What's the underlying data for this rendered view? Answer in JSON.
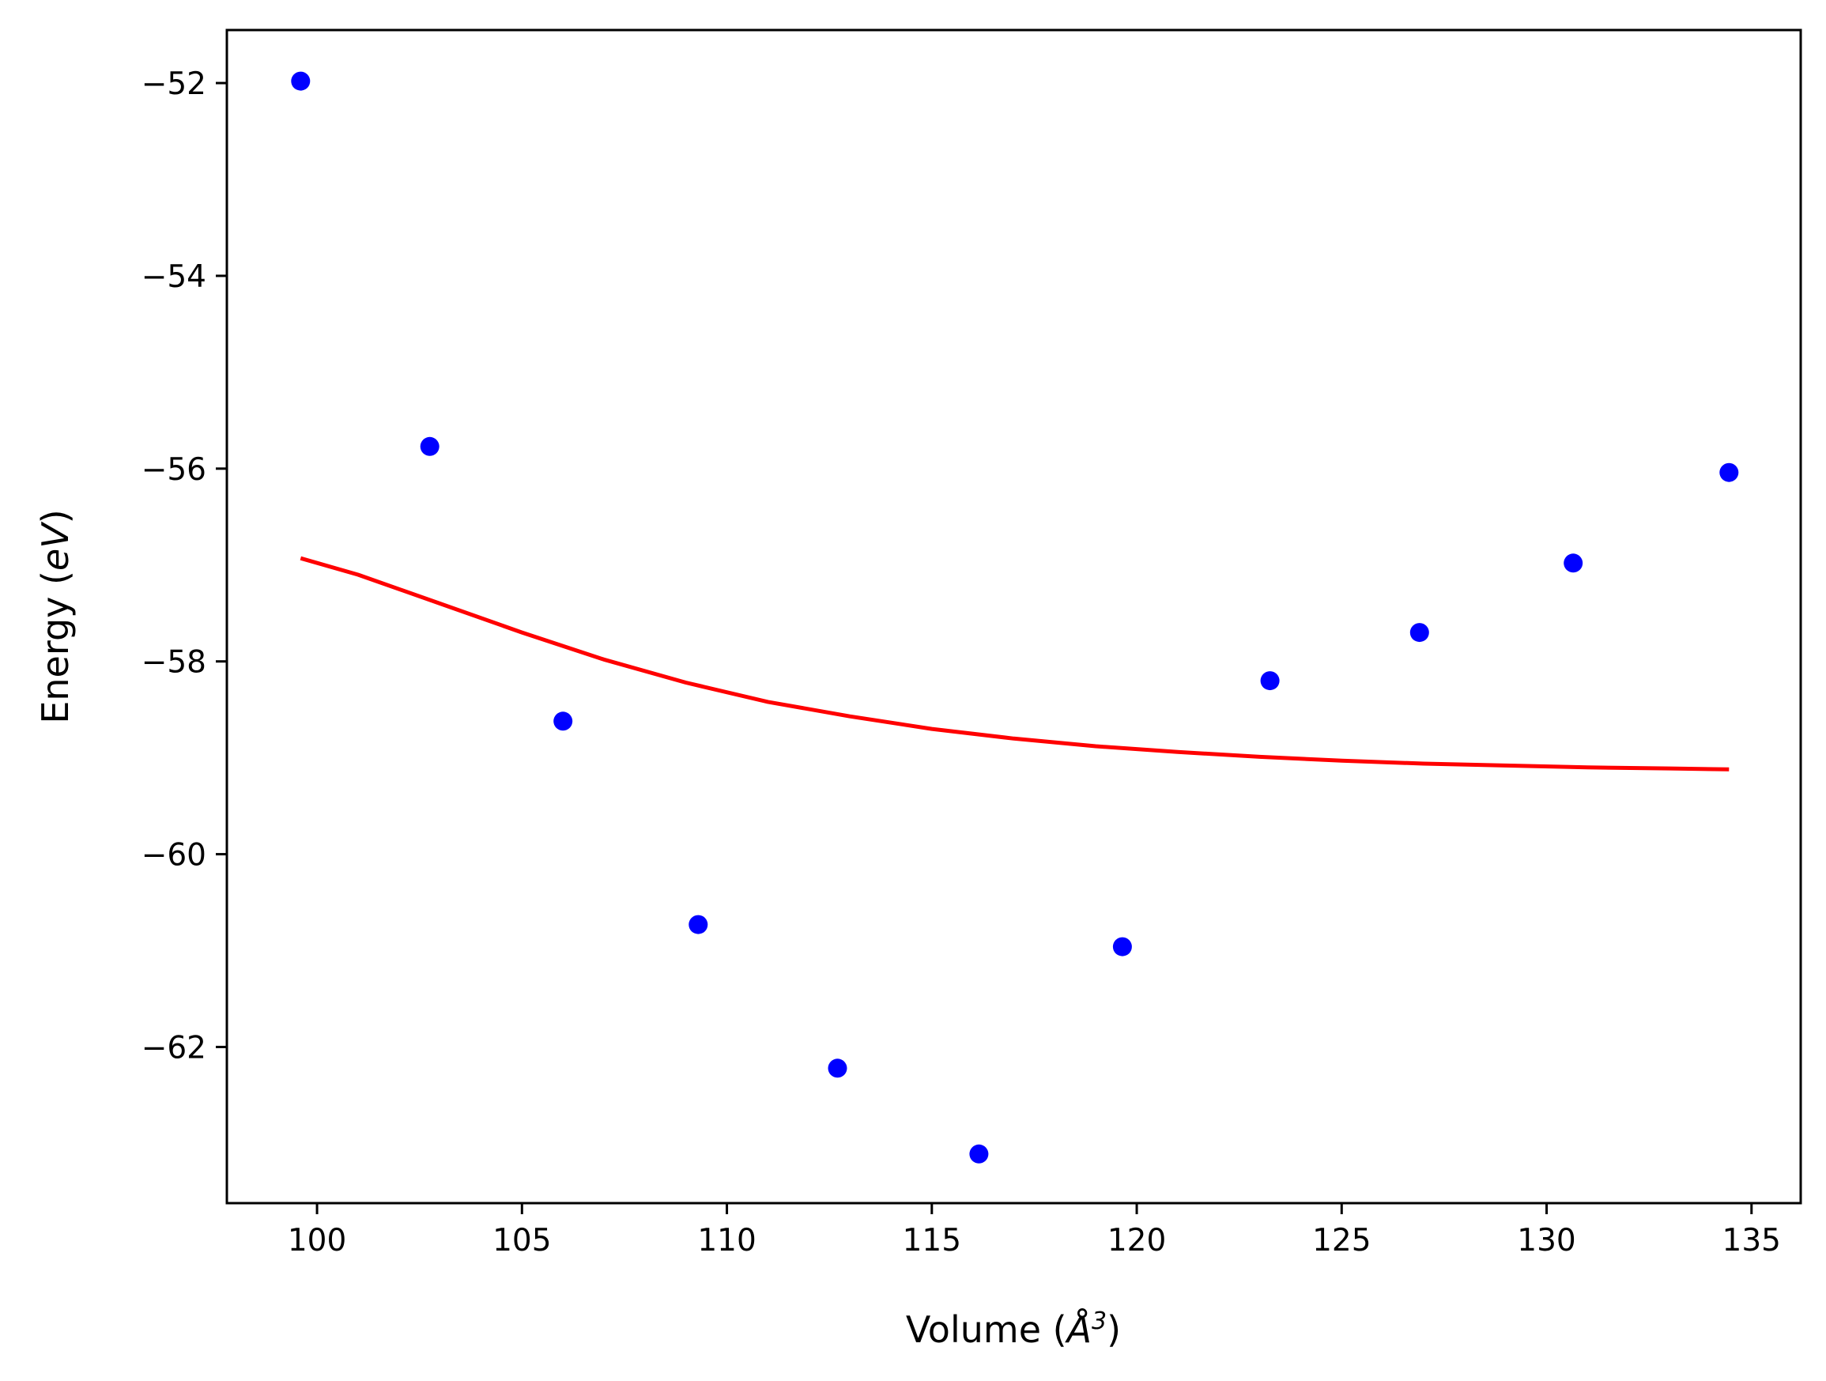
{
  "chart_data": {
    "type": "scatter",
    "xlabel_main": "Volume (",
    "xlabel_sym": "Å",
    "xlabel_sup": "3",
    "xlabel_end": ")",
    "ylabel_main": "Energy (",
    "ylabel_sym": "eV",
    "ylabel_end": ")",
    "xlim": [
      97.8,
      136.2
    ],
    "ylim": [
      -63.62,
      -51.45
    ],
    "xticks": [
      100,
      105,
      110,
      115,
      120,
      125,
      130,
      135
    ],
    "yticks": [
      -52,
      -54,
      -56,
      -58,
      -60,
      -62
    ],
    "ytick_labels": [
      "−52",
      "−54",
      "−56",
      "−58",
      "−60",
      "−62"
    ],
    "grid": false,
    "colors": {
      "points": "#0000ff",
      "fit_line": "#ff0000"
    },
    "series": [
      {
        "kind": "points",
        "x": [
          99.6,
          102.75,
          106.0,
          109.3,
          112.7,
          116.15,
          119.65,
          123.25,
          126.9,
          130.65,
          134.45
        ],
        "y": [
          -51.98,
          -55.77,
          -58.62,
          -60.73,
          -62.22,
          -63.11,
          -60.96,
          -58.2,
          -57.7,
          -56.98,
          -56.04
        ]
      },
      {
        "kind": "line",
        "x": [
          99.6,
          101,
          103,
          105,
          107,
          109,
          111,
          113,
          115,
          117,
          119,
          121,
          123,
          125,
          127,
          129,
          131,
          133,
          134.45
        ],
        "y": [
          -56.93,
          -57.1,
          -57.4,
          -57.7,
          -57.98,
          -58.22,
          -58.42,
          -58.57,
          -58.7,
          -58.8,
          -58.88,
          -58.94,
          -58.99,
          -59.03,
          -59.06,
          -59.08,
          -59.1,
          -59.11,
          -59.12
        ]
      }
    ]
  }
}
